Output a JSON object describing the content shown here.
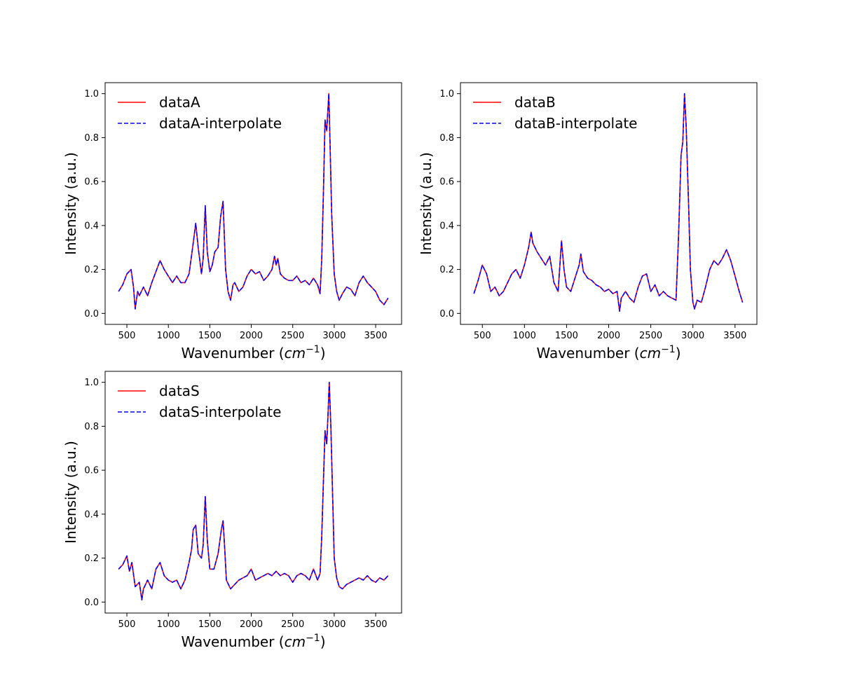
{
  "figure": {
    "background": "#ffffff"
  },
  "chart_data": [
    {
      "type": "line",
      "xlabel": "Wavenumber",
      "xlabel_unit": "cm⁻¹",
      "ylabel": "Intensity (a.u.)",
      "xlim": [
        400,
        3650
      ],
      "ylim": [
        0,
        1.0
      ],
      "xticks": [
        500,
        1000,
        1500,
        2000,
        2500,
        3000,
        3500
      ],
      "yticks": [
        "0.0",
        "0.2",
        "0.4",
        "0.6",
        "0.8",
        "1.0"
      ],
      "legend_position": "upper-left",
      "grid": false,
      "series": [
        {
          "name": "dataA",
          "color": "#ff0000",
          "style": "solid",
          "x": [
            400,
            450,
            500,
            550,
            580,
            600,
            630,
            650,
            700,
            750,
            800,
            850,
            880,
            900,
            950,
            1000,
            1050,
            1100,
            1150,
            1200,
            1250,
            1300,
            1330,
            1360,
            1400,
            1420,
            1445,
            1470,
            1500,
            1530,
            1560,
            1600,
            1630,
            1660,
            1690,
            1720,
            1750,
            1780,
            1800,
            1850,
            1900,
            1950,
            2000,
            2050,
            2100,
            2150,
            2200,
            2250,
            2280,
            2300,
            2320,
            2350,
            2400,
            2450,
            2500,
            2550,
            2600,
            2650,
            2700,
            2750,
            2800,
            2830,
            2850,
            2870,
            2890,
            2910,
            2920,
            2935,
            2950,
            2970,
            3000,
            3030,
            3060,
            3100,
            3150,
            3200,
            3250,
            3300,
            3350,
            3400,
            3450,
            3500,
            3550,
            3600,
            3650
          ],
          "y": [
            0.1,
            0.13,
            0.18,
            0.2,
            0.12,
            0.02,
            0.1,
            0.08,
            0.12,
            0.08,
            0.14,
            0.19,
            0.22,
            0.24,
            0.2,
            0.17,
            0.14,
            0.17,
            0.14,
            0.14,
            0.18,
            0.32,
            0.41,
            0.3,
            0.18,
            0.25,
            0.49,
            0.28,
            0.19,
            0.22,
            0.28,
            0.3,
            0.44,
            0.51,
            0.2,
            0.1,
            0.06,
            0.13,
            0.14,
            0.1,
            0.12,
            0.17,
            0.2,
            0.18,
            0.19,
            0.15,
            0.17,
            0.2,
            0.26,
            0.22,
            0.25,
            0.18,
            0.16,
            0.15,
            0.15,
            0.17,
            0.14,
            0.15,
            0.13,
            0.16,
            0.13,
            0.09,
            0.25,
            0.55,
            0.88,
            0.83,
            0.9,
            1.0,
            0.78,
            0.45,
            0.18,
            0.1,
            0.06,
            0.09,
            0.12,
            0.11,
            0.08,
            0.14,
            0.17,
            0.14,
            0.12,
            0.1,
            0.06,
            0.04,
            0.07
          ]
        },
        {
          "name": "dataA-interpolate",
          "color": "#0000ff",
          "style": "dashed",
          "same_as": 0
        }
      ]
    },
    {
      "type": "line",
      "xlabel": "Wavenumber",
      "xlabel_unit": "cm⁻¹",
      "ylabel": "Intensity (a.u.)",
      "xlim": [
        400,
        3600
      ],
      "ylim": [
        0,
        1.0
      ],
      "xticks": [
        500,
        1000,
        1500,
        2000,
        2500,
        3000,
        3500
      ],
      "yticks": [
        "0.0",
        "0.2",
        "0.4",
        "0.6",
        "0.8",
        "1.0"
      ],
      "legend_position": "upper-left",
      "grid": false,
      "series": [
        {
          "name": "dataB",
          "color": "#ff0000",
          "style": "solid",
          "x": [
            400,
            450,
            500,
            550,
            600,
            650,
            700,
            750,
            800,
            850,
            900,
            950,
            1000,
            1050,
            1080,
            1100,
            1150,
            1200,
            1250,
            1300,
            1350,
            1400,
            1440,
            1470,
            1500,
            1550,
            1600,
            1650,
            1670,
            1700,
            1750,
            1800,
            1850,
            1900,
            1950,
            2000,
            2050,
            2100,
            2130,
            2150,
            2200,
            2250,
            2300,
            2350,
            2400,
            2450,
            2500,
            2550,
            2600,
            2650,
            2700,
            2750,
            2800,
            2830,
            2860,
            2880,
            2900,
            2920,
            2950,
            2970,
            3000,
            3020,
            3050,
            3100,
            3150,
            3200,
            3250,
            3300,
            3350,
            3400,
            3450,
            3500,
            3550,
            3590
          ],
          "y": [
            0.09,
            0.15,
            0.22,
            0.18,
            0.1,
            0.12,
            0.08,
            0.1,
            0.14,
            0.18,
            0.2,
            0.16,
            0.22,
            0.3,
            0.37,
            0.32,
            0.28,
            0.25,
            0.22,
            0.26,
            0.14,
            0.1,
            0.33,
            0.2,
            0.12,
            0.1,
            0.16,
            0.22,
            0.27,
            0.19,
            0.16,
            0.15,
            0.13,
            0.12,
            0.1,
            0.11,
            0.09,
            0.1,
            0.01,
            0.07,
            0.1,
            0.07,
            0.05,
            0.12,
            0.17,
            0.18,
            0.1,
            0.13,
            0.08,
            0.1,
            0.08,
            0.07,
            0.06,
            0.35,
            0.72,
            0.78,
            1.0,
            0.85,
            0.48,
            0.2,
            0.05,
            0.02,
            0.06,
            0.05,
            0.12,
            0.2,
            0.24,
            0.22,
            0.25,
            0.29,
            0.24,
            0.17,
            0.1,
            0.05
          ]
        },
        {
          "name": "dataB-interpolate",
          "color": "#0000ff",
          "style": "dashed",
          "same_as": 0
        }
      ]
    },
    {
      "type": "line",
      "xlabel": "Wavenumber",
      "xlabel_unit": "cm⁻¹",
      "ylabel": "Intensity (a.u.)",
      "xlim": [
        400,
        3650
      ],
      "ylim": [
        0,
        1.0
      ],
      "xticks": [
        500,
        1000,
        1500,
        2000,
        2500,
        3000,
        3500
      ],
      "yticks": [
        "0.0",
        "0.2",
        "0.4",
        "0.6",
        "0.8",
        "1.0"
      ],
      "legend_position": "upper-left",
      "grid": false,
      "series": [
        {
          "name": "dataS",
          "color": "#ff0000",
          "style": "solid",
          "x": [
            400,
            450,
            500,
            530,
            560,
            600,
            650,
            680,
            700,
            750,
            800,
            850,
            900,
            950,
            1000,
            1050,
            1100,
            1150,
            1200,
            1250,
            1280,
            1300,
            1330,
            1360,
            1400,
            1420,
            1445,
            1470,
            1500,
            1550,
            1600,
            1640,
            1660,
            1680,
            1700,
            1750,
            1800,
            1850,
            1900,
            1950,
            2000,
            2050,
            2100,
            2150,
            2200,
            2250,
            2300,
            2350,
            2400,
            2450,
            2500,
            2550,
            2600,
            2650,
            2700,
            2750,
            2800,
            2830,
            2850,
            2870,
            2890,
            2910,
            2925,
            2940,
            2960,
            2980,
            3000,
            3030,
            3060,
            3100,
            3150,
            3200,
            3250,
            3300,
            3350,
            3400,
            3450,
            3500,
            3550,
            3600,
            3650
          ],
          "y": [
            0.15,
            0.17,
            0.21,
            0.14,
            0.18,
            0.07,
            0.09,
            0.01,
            0.06,
            0.1,
            0.06,
            0.15,
            0.18,
            0.12,
            0.1,
            0.09,
            0.1,
            0.06,
            0.1,
            0.18,
            0.24,
            0.33,
            0.35,
            0.22,
            0.2,
            0.26,
            0.48,
            0.28,
            0.15,
            0.15,
            0.22,
            0.33,
            0.37,
            0.24,
            0.1,
            0.06,
            0.08,
            0.1,
            0.11,
            0.12,
            0.15,
            0.1,
            0.11,
            0.12,
            0.13,
            0.12,
            0.14,
            0.12,
            0.13,
            0.12,
            0.09,
            0.12,
            0.13,
            0.12,
            0.1,
            0.15,
            0.1,
            0.13,
            0.3,
            0.55,
            0.78,
            0.72,
            0.85,
            1.0,
            0.8,
            0.5,
            0.2,
            0.11,
            0.07,
            0.06,
            0.08,
            0.09,
            0.1,
            0.11,
            0.1,
            0.12,
            0.1,
            0.09,
            0.11,
            0.1,
            0.12
          ]
        },
        {
          "name": "dataS-interpolate",
          "color": "#0000ff",
          "style": "dashed",
          "same_as": 0
        }
      ]
    }
  ]
}
